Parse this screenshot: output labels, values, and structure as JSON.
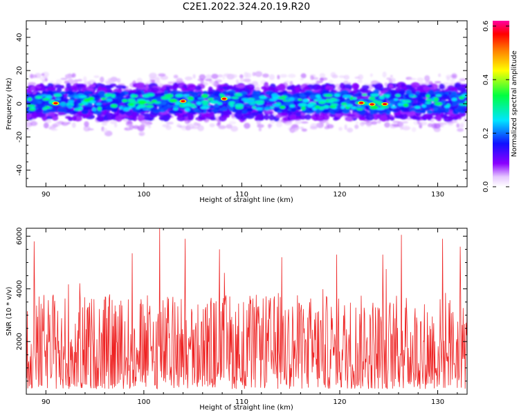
{
  "title": "C2E1.2022.324.20.19.R20",
  "chart_data": [
    {
      "type": "heatmap",
      "xlabel": "Height of straight line (km)",
      "ylabel": "Frequency (Hz)",
      "xlim": [
        88,
        133
      ],
      "ylim": [
        -50,
        50
      ],
      "xticks": [
        90,
        100,
        110,
        120,
        130
      ],
      "yticks": [
        -40,
        -20,
        0,
        20,
        40
      ],
      "colorbar": {
        "label": "Normalized spectral amplitude",
        "range": [
          0.0,
          0.62
        ],
        "ticks": [
          "0.0",
          "0.2",
          "0.4",
          "0.6"
        ],
        "colormap": "hsv-like (white-violet-blue-cyan-green-yellow-orange-red-magenta)"
      },
      "band": {
        "center_hz": 1,
        "core_halfwidth_hz": 6,
        "outer_halfwidth_hz": 12,
        "peak_heights_km": [
          91.0,
          104.0,
          108.2,
          122.2,
          123.3,
          124.6
        ],
        "peak_amplitude": 0.6
      }
    },
    {
      "type": "line",
      "series": [
        {
          "color": "#ee2222",
          "x_range_km": [
            88,
            133
          ],
          "peaks": [
            {
              "x": 88.8,
              "y": 5800
            },
            {
              "x": 98.8,
              "y": 5350
            },
            {
              "x": 101.6,
              "y": 6300
            },
            {
              "x": 104.2,
              "y": 5900
            },
            {
              "x": 107.7,
              "y": 5500
            },
            {
              "x": 114.1,
              "y": 5200
            },
            {
              "x": 119.7,
              "y": 5300
            },
            {
              "x": 124.4,
              "y": 5300
            },
            {
              "x": 126.3,
              "y": 6050
            },
            {
              "x": 130.5,
              "y": 5900
            },
            {
              "x": 132.3,
              "y": 5600
            }
          ],
          "typical_range": [
            100,
            4500
          ]
        }
      ],
      "xlabel": "Height of straight line (km)",
      "ylabel": "SNR (10 * v/v)",
      "xlim": [
        88,
        133
      ],
      "ylim": [
        0,
        6300
      ],
      "xticks": [
        90,
        100,
        110,
        120,
        130
      ],
      "yticks": [
        2000,
        4000,
        6000
      ]
    }
  ]
}
